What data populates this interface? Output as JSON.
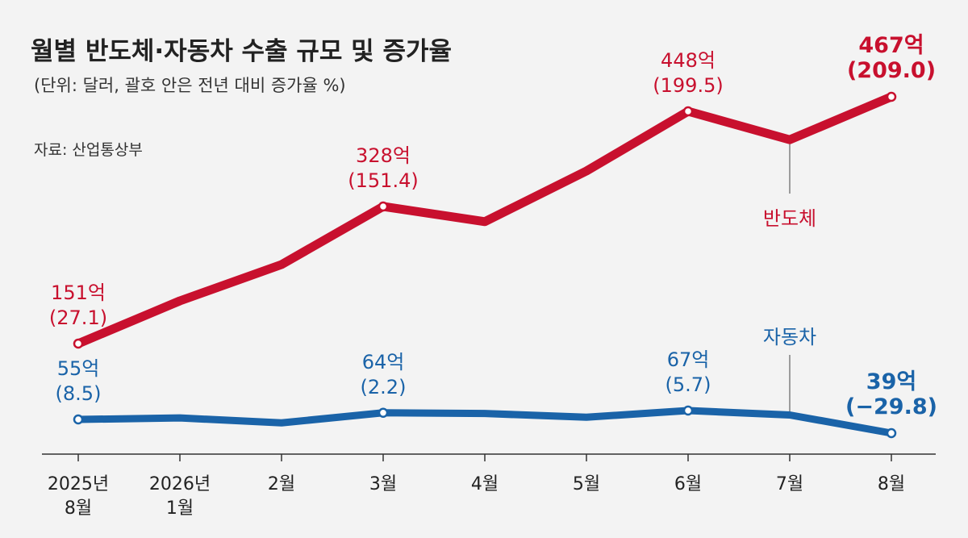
{
  "chart_data": {
    "type": "line",
    "title": "월별 반도체·자동차 수출 규모 및 증가율",
    "subtitle": "(단위: 달러, 괄호 안은 전년 대비 증가율 %)",
    "source": "자료: 산업통상부",
    "categories": [
      [
        "2025년",
        "8월"
      ],
      [
        "2026년",
        "1월"
      ],
      [
        "2월"
      ],
      [
        "3월"
      ],
      [
        "4월"
      ],
      [
        "5월"
      ],
      [
        "6월"
      ],
      [
        "7월"
      ],
      [
        "8월"
      ]
    ],
    "ylabel": "",
    "ylim": [
      0,
      470
    ],
    "series": [
      {
        "name": "반도체",
        "color": "#c8102e",
        "values": [
          151,
          245,
          305,
          328,
          322,
          385,
          448,
          418,
          467
        ],
        "labels": [
          {
            "index": 0,
            "value": "151억",
            "rate": "(27.1)"
          },
          {
            "index": 3,
            "value": "328억",
            "rate": "(151.4)"
          },
          {
            "index": 6,
            "value": "448억",
            "rate": "(199.5)"
          },
          {
            "index": 8,
            "value": "467억",
            "rate": "(209.0)",
            "bold": true
          }
        ]
      },
      {
        "name": "자동차",
        "color": "#1a63a8",
        "values": [
          55,
          57,
          51,
          64,
          63,
          58,
          67,
          61,
          39
        ],
        "labels": [
          {
            "index": 0,
            "value": "55억",
            "rate": "(8.5)"
          },
          {
            "index": 3,
            "value": "64억",
            "rate": "(2.2)"
          },
          {
            "index": 6,
            "value": "67억",
            "rate": "(5.7)"
          },
          {
            "index": 8,
            "value": "39억",
            "rate": "(−29.8)",
            "bold": true
          }
        ]
      }
    ]
  }
}
